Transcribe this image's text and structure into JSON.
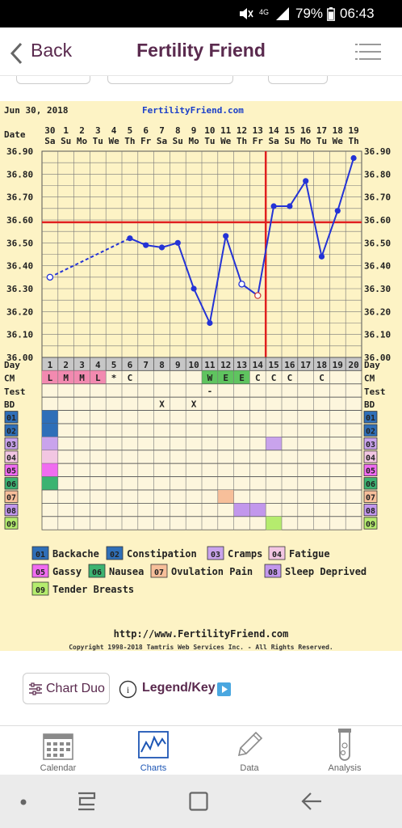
{
  "status_bar": {
    "signal": "4G",
    "battery": "79%",
    "time": "06:43"
  },
  "app_bar": {
    "back_label": "Back",
    "title": "Fertility Friend"
  },
  "chart_header": {
    "date": "Jun 30, 2018",
    "site": "FertilityFriend.com"
  },
  "chart_data": {
    "type": "line",
    "title": "",
    "ylabel": "",
    "ylim": [
      36.0,
      36.9
    ],
    "y_ticks": [
      "36.90",
      "36.80",
      "36.70",
      "36.60",
      "36.50",
      "36.40",
      "36.30",
      "36.20",
      "36.10",
      "36.00"
    ],
    "row_labels": {
      "date": "Date",
      "day": "Day",
      "cm": "CM",
      "test": "Test",
      "bd": "BD"
    },
    "dates": [
      "30",
      "1",
      "2",
      "3",
      "4",
      "5",
      "6",
      "7",
      "8",
      "9",
      "10",
      "11",
      "12",
      "13",
      "14",
      "15",
      "16",
      "17",
      "18",
      "19"
    ],
    "weekdays": [
      "Sa",
      "Su",
      "Mo",
      "Tu",
      "We",
      "Th",
      "Fr",
      "Sa",
      "Su",
      "Mo",
      "Tu",
      "We",
      "Th",
      "Fr",
      "Sa",
      "Su",
      "Mo",
      "Tu",
      "We",
      "Th"
    ],
    "days": [
      "1",
      "2",
      "3",
      "4",
      "5",
      "6",
      "7",
      "8",
      "9",
      "10",
      "11",
      "12",
      "13",
      "14",
      "15",
      "16",
      "17",
      "18",
      "19",
      "20"
    ],
    "temps": [
      36.35,
      null,
      null,
      null,
      null,
      36.52,
      36.49,
      36.48,
      36.5,
      36.3,
      36.15,
      36.53,
      36.32,
      36.27,
      36.66,
      36.66,
      36.77,
      36.44,
      36.64,
      36.87
    ],
    "open_points": [
      0,
      12,
      13
    ],
    "coverline": 36.59,
    "ovulation_day": 14,
    "cm": [
      "L",
      "M",
      "M",
      "L",
      "*",
      "C",
      "",
      "",
      "",
      "",
      "W",
      "E",
      "E",
      "C",
      "C",
      "C",
      "",
      "C",
      "",
      ""
    ],
    "cm_colors": [
      "#f28ab0",
      "#f28ab0",
      "#f28ab0",
      "#f28ab0",
      "",
      "",
      "",
      "",
      "",
      "",
      "#5fc45f",
      "#5fc45f",
      "#5fc45f",
      "",
      "",
      "",
      "",
      "",
      "",
      ""
    ],
    "test": [
      "",
      "",
      "",
      "",
      "",
      "",
      "",
      "",
      "",
      "",
      "-",
      "",
      "",
      "",
      "",
      "",
      "",
      "",
      "",
      ""
    ],
    "bd": [
      "",
      "",
      "",
      "",
      "",
      "",
      "",
      "X",
      "",
      "X",
      "",
      "",
      "",
      "",
      "",
      "",
      "",
      "",
      "",
      ""
    ],
    "symptoms": [
      {
        "code": "01",
        "name": "Backache",
        "color": "#2f6fb8",
        "days": [
          1
        ]
      },
      {
        "code": "02",
        "name": "Constipation",
        "color": "#2f6fb8",
        "days": [
          1
        ]
      },
      {
        "code": "03",
        "name": "Cramps",
        "color": "#c9a3ec",
        "days": [
          1,
          15
        ]
      },
      {
        "code": "04",
        "name": "Fatigue",
        "color": "#f2c6e2",
        "days": [
          1
        ]
      },
      {
        "code": "05",
        "name": "Gassy",
        "color": "#f06cf0",
        "days": [
          1
        ]
      },
      {
        "code": "06",
        "name": "Nausea",
        "color": "#3cb371",
        "days": [
          1
        ]
      },
      {
        "code": "07",
        "name": "Ovulation Pain",
        "color": "#f7bf9a",
        "days": [
          12
        ]
      },
      {
        "code": "08",
        "name": "Sleep Deprived",
        "color": "#c297ec",
        "days": [
          13,
          14
        ]
      },
      {
        "code": "09",
        "name": "Tender Breasts",
        "color": "#b5ec6e",
        "days": [
          15
        ]
      }
    ]
  },
  "chart_footer": {
    "url": "http://www.FertilityFriend.com",
    "copyright": "Copyright 1998-2018 Tamtris Web Services Inc. - All Rights Reserved."
  },
  "actions": {
    "chart_duo": "Chart Duo",
    "legend": "Legend/Key"
  },
  "bottom_nav": [
    {
      "label": "Calendar",
      "icon": "calendar-icon",
      "active": false
    },
    {
      "label": "Charts",
      "icon": "chart-icon",
      "active": true
    },
    {
      "label": "Data",
      "icon": "pencil-icon",
      "active": false
    },
    {
      "label": "Analysis",
      "icon": "test-tube-icon",
      "active": false
    }
  ]
}
